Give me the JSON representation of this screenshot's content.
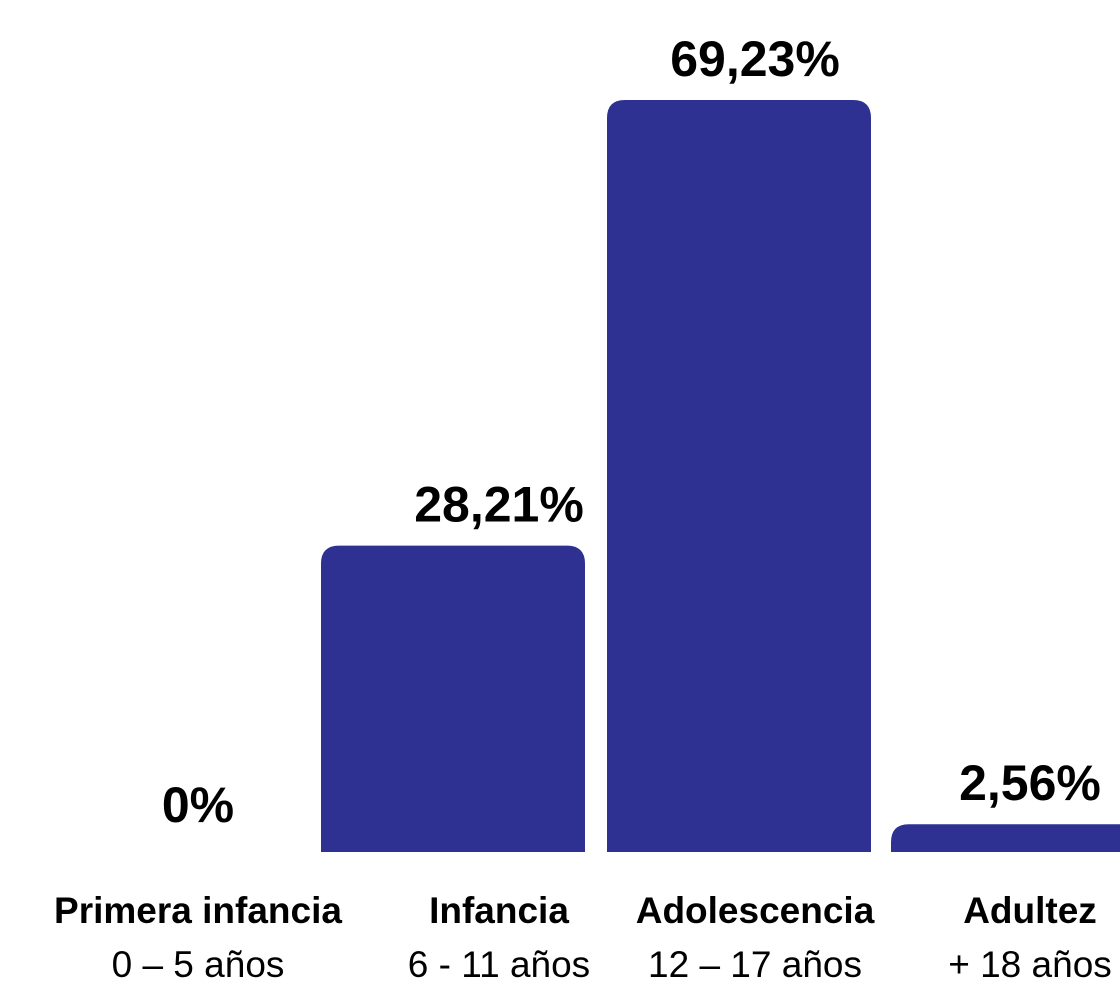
{
  "chart_data": {
    "type": "bar",
    "categories": [
      "Primera infancia",
      "Infancia",
      "Adolescencia",
      "Adultez"
    ],
    "subcategories": [
      "0 – 5 años",
      "6 - 11 años",
      "12 – 17 años",
      "+ 18 años"
    ],
    "values": [
      0,
      28.21,
      69.23,
      2.56
    ],
    "value_labels": [
      "0%",
      "28,21%",
      "69,23%",
      "2,56%"
    ],
    "ylim": [
      0,
      69.23
    ],
    "grid": false,
    "bar_color": "#2e3192"
  }
}
